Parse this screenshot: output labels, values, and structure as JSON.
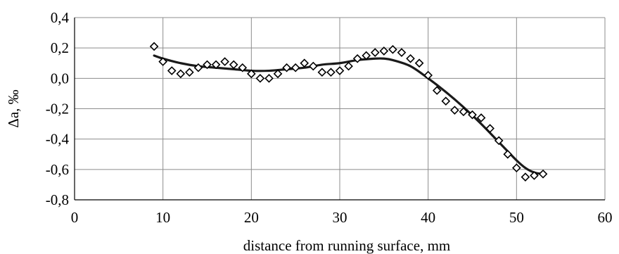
{
  "chart_data": {
    "type": "scatter",
    "title": "",
    "xlabel": "distance from running surface, mm",
    "ylabel": "Δa, ‰",
    "xlim": [
      0,
      60
    ],
    "ylim": [
      -0.8,
      0.4
    ],
    "grid": true,
    "legend": "none",
    "x_ticks": [
      0,
      10,
      20,
      30,
      40,
      50,
      60
    ],
    "x_tick_labels": [
      "0",
      "10",
      "20",
      "30",
      "40",
      "50",
      "60"
    ],
    "y_ticks": [
      0.4,
      0.2,
      0.0,
      -0.2,
      -0.4,
      -0.6,
      -0.8
    ],
    "y_tick_labels": [
      "0,4",
      "0,2",
      "0,0",
      "-0,2",
      "-0,4",
      "-0,6",
      "-0,8"
    ],
    "series": [
      {
        "kind": "markers",
        "marker": "diamond",
        "x": [
          9,
          10,
          11,
          12,
          13,
          14,
          15,
          16,
          17,
          18,
          19,
          20,
          21,
          22,
          23,
          24,
          25,
          26,
          27,
          28,
          29,
          30,
          31,
          32,
          33,
          34,
          35,
          36,
          37,
          38,
          39,
          40,
          41,
          42,
          43,
          44,
          45,
          46,
          47,
          48,
          49,
          50,
          51,
          52,
          53
        ],
        "y": [
          0.21,
          0.11,
          0.05,
          0.03,
          0.04,
          0.07,
          0.09,
          0.09,
          0.11,
          0.09,
          0.07,
          0.03,
          0.0,
          0.0,
          0.03,
          0.07,
          0.07,
          0.1,
          0.08,
          0.04,
          0.04,
          0.05,
          0.08,
          0.13,
          0.15,
          0.17,
          0.18,
          0.19,
          0.17,
          0.13,
          0.1,
          0.02,
          -0.08,
          -0.15,
          -0.21,
          -0.22,
          -0.24,
          -0.26,
          -0.33,
          -0.41,
          -0.5,
          -0.59,
          -0.65,
          -0.64,
          -0.63
        ]
      },
      {
        "kind": "line",
        "x": [
          9,
          10,
          12,
          14,
          16,
          18,
          20,
          22,
          24,
          26,
          28,
          30,
          32,
          34,
          35,
          36,
          38,
          40,
          42,
          44,
          46,
          48,
          50,
          51,
          52,
          53
        ],
        "y": [
          0.15,
          0.13,
          0.1,
          0.08,
          0.07,
          0.06,
          0.05,
          0.05,
          0.06,
          0.07,
          0.09,
          0.1,
          0.12,
          0.13,
          0.13,
          0.12,
          0.08,
          0.0,
          -0.09,
          -0.19,
          -0.3,
          -0.42,
          -0.54,
          -0.59,
          -0.62,
          -0.63
        ]
      }
    ]
  }
}
